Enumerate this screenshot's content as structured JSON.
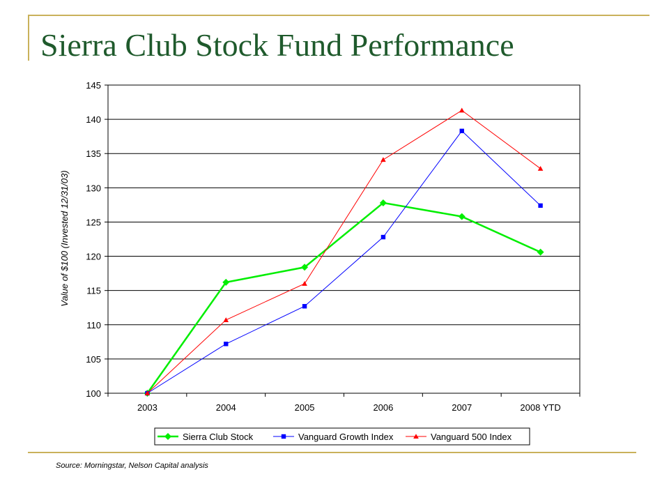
{
  "slide": {
    "title": "Sierra Club Stock Fund Performance",
    "source": "Source:  Morningstar, Nelson Capital analysis"
  },
  "chart_data": {
    "type": "line",
    "categories": [
      "2003",
      "2004",
      "2005",
      "2006",
      "2007",
      "2008 YTD"
    ],
    "ylabel": "Value of $100 (Invested 12/31/03)",
    "xlabel": "",
    "ylim": [
      100,
      145
    ],
    "yticks": [
      "100",
      "105",
      "110",
      "115",
      "120",
      "125",
      "130",
      "135",
      "140",
      "145"
    ],
    "grid": true,
    "legend_position": "bottom",
    "series": [
      {
        "name": "Sierra Club Stock",
        "values": [
          100,
          116.2,
          118.4,
          127.8,
          125.8,
          120.6
        ],
        "color": "#00ee00",
        "marker": "diamond"
      },
      {
        "name": "Vanguard Growth Index",
        "values": [
          100,
          107.2,
          112.7,
          122.8,
          138.3,
          127.4
        ],
        "color": "#0000ff",
        "marker": "square"
      },
      {
        "name": "Vanguard 500 Index",
        "values": [
          100,
          110.7,
          116.0,
          134.1,
          141.3,
          132.8
        ],
        "color": "#ff0000",
        "marker": "triangle"
      }
    ]
  }
}
